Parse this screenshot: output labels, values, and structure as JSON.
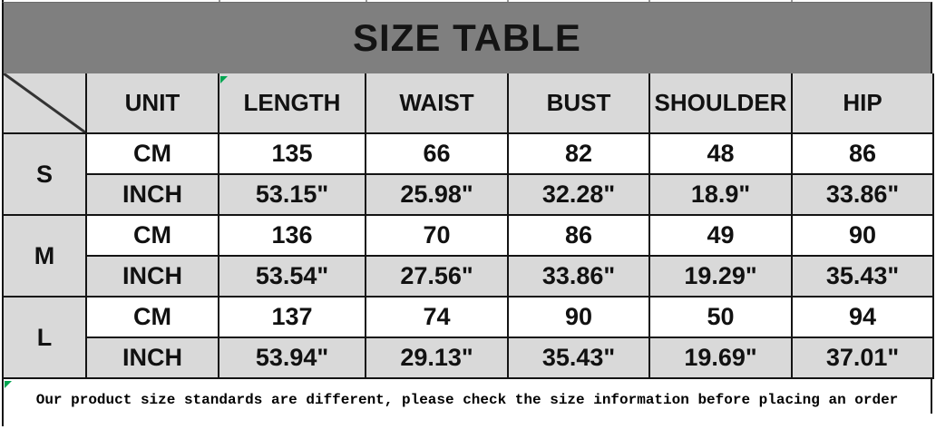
{
  "title": "SIZE TABLE",
  "columns": [
    "UNIT",
    "LENGTH",
    "WAIST",
    "BUST",
    "SHOULDER",
    "HIP"
  ],
  "unit_labels": {
    "cm": "CM",
    "inch": "INCH"
  },
  "sizes": [
    {
      "label": "S",
      "cm": [
        "135",
        "66",
        "82",
        "48",
        "86"
      ],
      "inch": [
        "53.15\"",
        "25.98\"",
        "32.28\"",
        "18.9\"",
        "33.86\""
      ]
    },
    {
      "label": "M",
      "cm": [
        "136",
        "70",
        "86",
        "49",
        "90"
      ],
      "inch": [
        "53.54\"",
        "27.56\"",
        "33.86\"",
        "19.29\"",
        "35.43\""
      ]
    },
    {
      "label": "L",
      "cm": [
        "137",
        "74",
        "90",
        "50",
        "94"
      ],
      "inch": [
        "53.94\"",
        "29.13\"",
        "35.43\"",
        "19.69\"",
        "37.01\""
      ]
    }
  ],
  "note": "Our product size standards are different, please check the size information before placing an order",
  "icons": {
    "corner_diagonal": "diagonal-divider",
    "comment_flags": "green-triangle"
  },
  "colors": {
    "title_bar_bg": "#7f7f7f",
    "header_bg": "#d9d9d9",
    "inch_row_bg": "#d9d9d9",
    "cm_row_bg": "#ffffff",
    "border": "#141414",
    "flag_green": "#00a550",
    "text": "#111111"
  }
}
